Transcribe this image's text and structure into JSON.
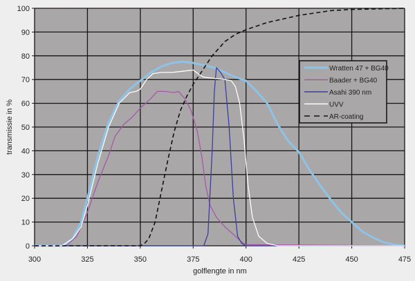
{
  "chart_data": {
    "type": "line",
    "xlabel": "golflengte in nm",
    "ylabel": "transmissie in %",
    "xlim": [
      300,
      475
    ],
    "ylim": [
      0,
      100
    ],
    "xticks": [
      300,
      325,
      350,
      375,
      400,
      425,
      450,
      475
    ],
    "yticks": [
      0,
      10,
      20,
      30,
      40,
      50,
      60,
      70,
      80,
      90,
      100
    ],
    "grid": true,
    "legend_position": "right",
    "plot_background": "#a9a7a8",
    "series": [
      {
        "name": "Wratten 47 + BG40",
        "color": "#8fc3e6",
        "dash": false,
        "x": [
          300,
          313,
          318,
          322,
          325,
          330,
          335,
          340,
          345,
          350,
          355,
          360,
          365,
          370,
          375,
          380,
          385,
          390,
          395,
          400,
          405,
          410,
          415,
          420,
          425,
          430,
          435,
          440,
          445,
          450,
          455,
          460,
          465,
          470,
          475
        ],
        "y": [
          0,
          0,
          3,
          10,
          20,
          38,
          52,
          61,
          66,
          69.5,
          73,
          75.5,
          77,
          77.5,
          77,
          76,
          75,
          73,
          71,
          69.5,
          65,
          60,
          51,
          44,
          39.5,
          32,
          25.5,
          19.5,
          14,
          10,
          6,
          3.5,
          1.5,
          0.5,
          0
        ]
      },
      {
        "name": "Baader + BG40",
        "color": "#a35aa6",
        "dash": false,
        "x": [
          300,
          315,
          320,
          325,
          330,
          335,
          338,
          342,
          346,
          350,
          355,
          358,
          362,
          366,
          368,
          371,
          374,
          377,
          379,
          381,
          383,
          386,
          390,
          395,
          398,
          400,
          475
        ],
        "y": [
          0,
          0,
          4,
          14,
          27,
          38,
          46,
          51,
          54,
          58,
          62,
          65,
          65,
          64.5,
          65,
          62,
          57,
          48,
          38,
          25,
          17,
          12,
          8,
          4,
          1.5,
          0.5,
          0
        ]
      },
      {
        "name": "Asahi 390 nm",
        "color": "#3a3f9e",
        "dash": false,
        "x": [
          300,
          380,
          382,
          384,
          385,
          386,
          388,
          390,
          392,
          394,
          396,
          398,
          400,
          475
        ],
        "y": [
          0,
          0,
          5,
          40,
          65,
          75,
          73,
          70,
          50,
          20,
          4,
          1,
          0,
          0
        ]
      },
      {
        "name": "UVV",
        "color": "#ffffff",
        "dash": false,
        "x": [
          300,
          313,
          318,
          322,
          325,
          330,
          335,
          340,
          345,
          348,
          350,
          353,
          356,
          360,
          365,
          370,
          375,
          378,
          380,
          385,
          390,
          393,
          395,
          397,
          399,
          401,
          403,
          406,
          410,
          415,
          475
        ],
        "y": [
          0,
          0,
          3,
          8,
          17,
          35,
          50,
          60,
          64.5,
          65,
          66,
          70,
          72.5,
          73,
          73,
          73.5,
          74,
          72,
          71,
          70.5,
          70,
          69.5,
          67,
          60,
          45,
          25,
          12,
          4,
          1,
          0,
          0
        ]
      },
      {
        "name": "AR-coating",
        "color": "#111111",
        "dash": true,
        "x": [
          300,
          350,
          352,
          354,
          357,
          360,
          363,
          366,
          369,
          372,
          375,
          378,
          381,
          384,
          387,
          390,
          395,
          400,
          410,
          425,
          440,
          450,
          475
        ],
        "y": [
          0,
          0,
          1,
          3,
          10,
          23,
          36,
          48,
          57,
          63,
          68,
          72,
          76,
          80,
          83,
          86,
          89,
          91,
          94,
          97,
          99,
          99.5,
          100
        ]
      }
    ]
  }
}
